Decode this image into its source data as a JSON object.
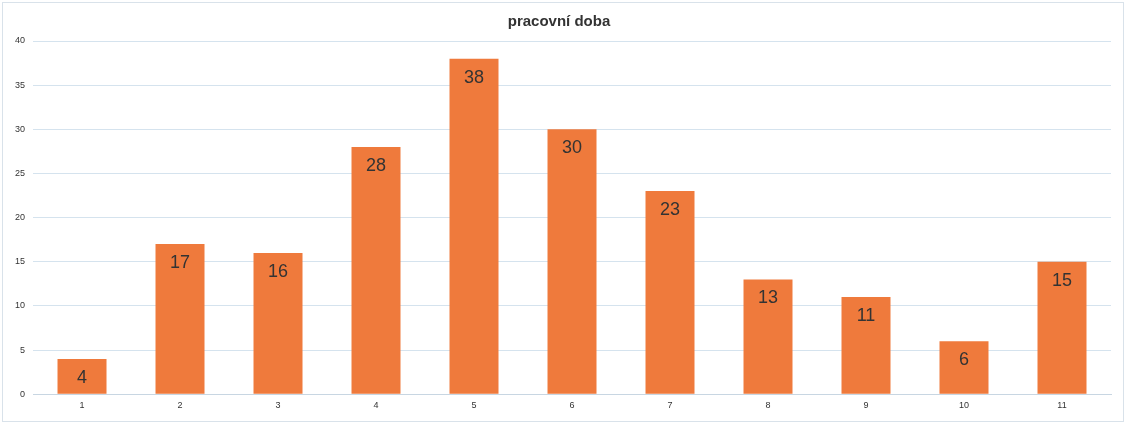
{
  "chart_data": {
    "type": "bar",
    "title": "pracovní doba",
    "categories": [
      "1",
      "2",
      "3",
      "4",
      "5",
      "6",
      "7",
      "8",
      "9",
      "10",
      "11"
    ],
    "values": [
      4,
      17,
      16,
      28,
      38,
      30,
      23,
      13,
      11,
      6,
      15
    ],
    "color": "#ef7a3c",
    "ylim": [
      0,
      40
    ],
    "yticks": [
      0,
      5,
      10,
      15,
      20,
      25,
      30,
      35,
      40
    ],
    "grid": "y",
    "data_labels": true
  }
}
